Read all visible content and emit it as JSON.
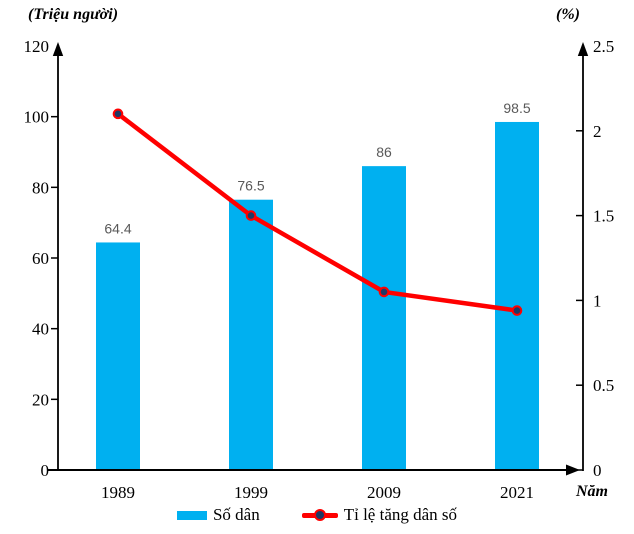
{
  "chart_data": {
    "type": "combo_bar_line",
    "categories": [
      "1989",
      "1999",
      "2009",
      "2021"
    ],
    "x_axis": {
      "title": "Năm"
    },
    "left_axis": {
      "title": "(Triệu người)",
      "max": 120,
      "ticks": [
        {
          "v": 0,
          "label": "0"
        },
        {
          "v": 20,
          "label": "20"
        },
        {
          "v": 40,
          "label": "40"
        },
        {
          "v": 60,
          "label": "60"
        },
        {
          "v": 80,
          "label": "80"
        },
        {
          "v": 100,
          "label": "100"
        },
        {
          "v": 120,
          "label": "120"
        }
      ]
    },
    "right_axis": {
      "title": "(%)",
      "max": 2.5,
      "ticks": [
        {
          "v": 0,
          "label": "0"
        },
        {
          "v": 0.5,
          "label": "0.5"
        },
        {
          "v": 1,
          "label": "1"
        },
        {
          "v": 1.5,
          "label": "1.5"
        },
        {
          "v": 2,
          "label": "2"
        },
        {
          "v": 2.5,
          "label": "2.5"
        }
      ]
    },
    "series": [
      {
        "name": "Số dân",
        "type": "bar",
        "axis": "left",
        "color": "#00B0F0",
        "values": [
          64.4,
          76.5,
          86,
          98.5
        ],
        "data_labels": [
          "64.4",
          "76.5",
          "86",
          "98.5"
        ],
        "label_color": "#595959"
      },
      {
        "name": "Tỉ lệ tăng dân số",
        "type": "line",
        "axis": "right",
        "color": "#FF0000",
        "marker_color": "#1F3864",
        "values": [
          2.1,
          1.5,
          1.05,
          0.94
        ]
      }
    ],
    "legend_position": "bottom",
    "grid": false,
    "axis_color": "#000000"
  }
}
